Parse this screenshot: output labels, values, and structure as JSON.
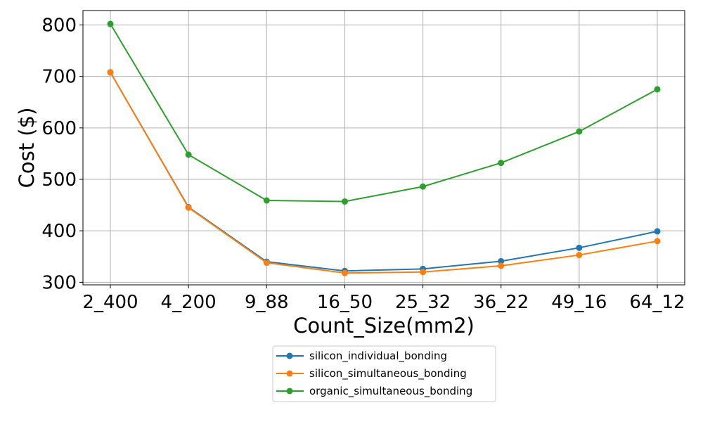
{
  "chart_data": {
    "type": "line",
    "title": "",
    "xlabel": "Count_Size(mm2)",
    "ylabel": "Cost ($)",
    "categories": [
      "2_400",
      "4_200",
      "9_88",
      "16_50",
      "25_32",
      "36_22",
      "49_16",
      "64_12"
    ],
    "ylim": [
      295,
      828
    ],
    "yticks": [
      300,
      400,
      500,
      600,
      700,
      800
    ],
    "grid": true,
    "legend_position": "bottom-center",
    "series": [
      {
        "name": "silicon_individual_bonding",
        "color": "#1f77b4",
        "values": [
          708,
          446,
          340,
          322,
          326,
          341,
          367,
          399
        ]
      },
      {
        "name": "silicon_simultaneous_bonding",
        "color": "#ff7f0e",
        "values": [
          708,
          445,
          338,
          318,
          320,
          332,
          353,
          380
        ]
      },
      {
        "name": "organic_simultaneous_bonding",
        "color": "#2ca02c",
        "values": [
          802,
          548,
          459,
          457,
          486,
          532,
          593,
          675
        ]
      }
    ]
  }
}
